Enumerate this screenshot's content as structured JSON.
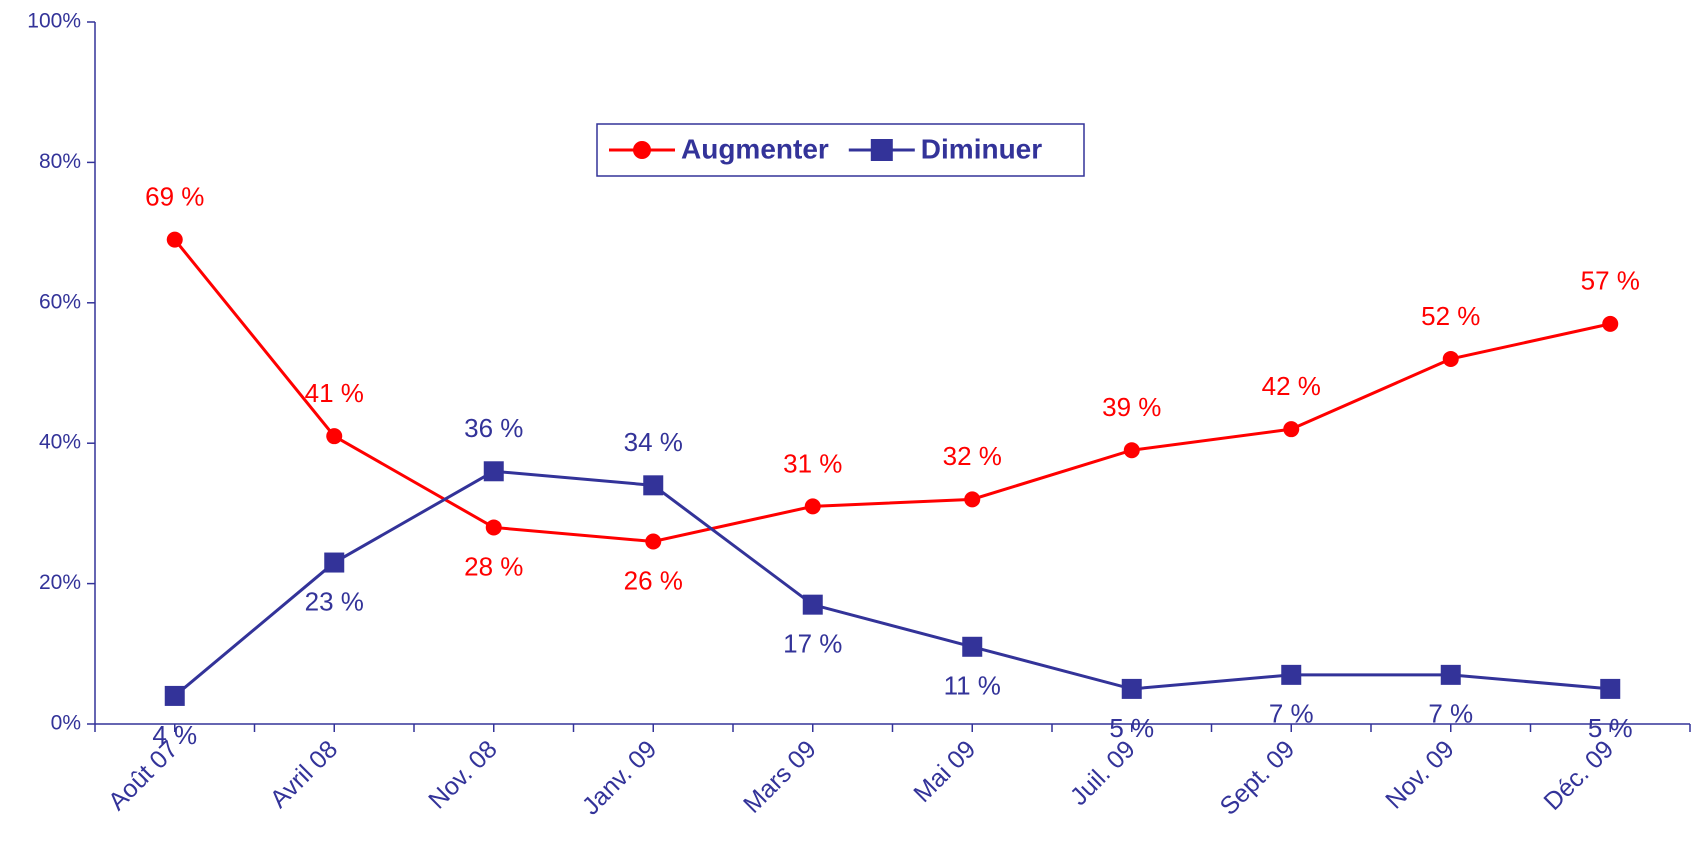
{
  "chart_data": {
    "type": "line",
    "categories": [
      "Août 07",
      "Avril 08",
      "Nov. 08",
      "Janv. 09",
      "Mars 09",
      "Mai 09",
      "Juil. 09",
      "Sept. 09",
      "Nov. 09",
      "Déc. 09"
    ],
    "series": [
      {
        "name": "Augmenter",
        "color": "#ff0000",
        "marker": "circle",
        "values": [
          69,
          41,
          28,
          26,
          31,
          32,
          39,
          42,
          52,
          57
        ],
        "value_labels": [
          "69 %",
          "41 %",
          "28 %",
          "26 %",
          "31 %",
          "32 %",
          "39 %",
          "42 %",
          "52 %",
          "57 %"
        ]
      },
      {
        "name": "Diminuer",
        "color": "#333399",
        "marker": "square",
        "values": [
          4,
          23,
          36,
          34,
          17,
          11,
          5,
          7,
          7,
          5
        ],
        "value_labels": [
          "4 %",
          "23 %",
          "36 %",
          "34 %",
          "17 %",
          "11 %",
          "5 %",
          "7 %",
          "7 %",
          "5 %"
        ]
      }
    ],
    "ylim": [
      0,
      100
    ],
    "yticks": [
      {
        "value": 0,
        "label": "0%"
      },
      {
        "value": 20,
        "label": "20%"
      },
      {
        "value": 40,
        "label": "40%"
      },
      {
        "value": 60,
        "label": "60%"
      },
      {
        "value": 80,
        "label": "80%"
      },
      {
        "value": 100,
        "label": "100%"
      }
    ],
    "legend": "top"
  }
}
